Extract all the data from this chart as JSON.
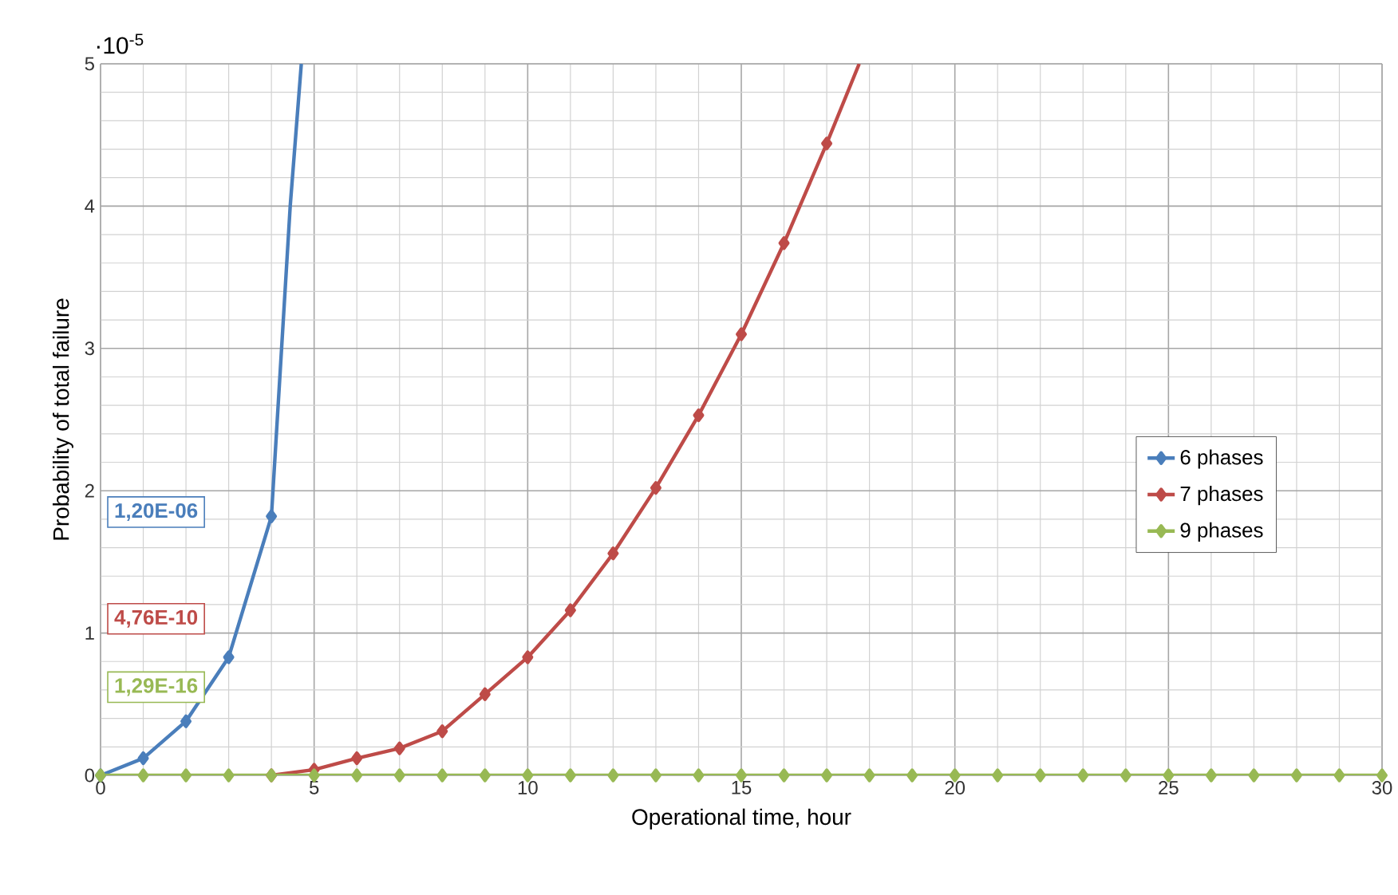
{
  "chart_data": {
    "type": "line",
    "xlabel": "Operational time, hour",
    "ylabel": "Probability of total failure",
    "xlim": [
      0,
      30
    ],
    "xticks": [
      0,
      5,
      10,
      15,
      20,
      25,
      30
    ],
    "ylim": [
      0,
      5
    ],
    "yticks": [
      0,
      1,
      2,
      3,
      4,
      5
    ],
    "grid": true,
    "legend": "right",
    "marker": "diamond",
    "line_style": "solid",
    "annotations": [
      "1,20E-06",
      "4,76E-10",
      "1,29E-16",
      "·10$^{-5}$"
    ],
    "series": [
      {
        "name": "6 phases",
        "color": "#4a7ebb",
        "x": [
          0,
          1,
          2,
          3,
          4,
          4.44,
          4.7
        ],
        "values": [
          0,
          0.12,
          0.38,
          0.83,
          1.82,
          4,
          5
        ]
      },
      {
        "name": "7 phases",
        "color": "#be4b48",
        "x": [
          4,
          5,
          6,
          7,
          8,
          9,
          10,
          11,
          12,
          13,
          14,
          15,
          16,
          17,
          17.76
        ],
        "values": [
          0,
          0.04,
          0.12,
          0.19,
          0.31,
          0.57,
          0.83,
          1.16,
          1.56,
          2.02,
          2.53,
          3.1,
          3.74,
          4.44,
          5
        ]
      },
      {
        "name": "9 phases",
        "color": "#98b954",
        "x": [
          0,
          1,
          2,
          3,
          4,
          5,
          6,
          7,
          8,
          9,
          10,
          11,
          12,
          13,
          14,
          15,
          16,
          17,
          18,
          19,
          20,
          21,
          22,
          23,
          24,
          25,
          26,
          27,
          28,
          29,
          30
        ],
        "values": [
          0,
          0,
          0,
          0,
          0,
          0,
          0,
          0,
          0,
          0,
          0,
          0,
          0,
          0,
          0,
          0,
          0,
          0,
          0,
          0,
          0,
          0,
          0,
          0,
          0,
          0,
          0,
          0,
          0,
          0,
          0
        ]
      }
    ]
  }
}
